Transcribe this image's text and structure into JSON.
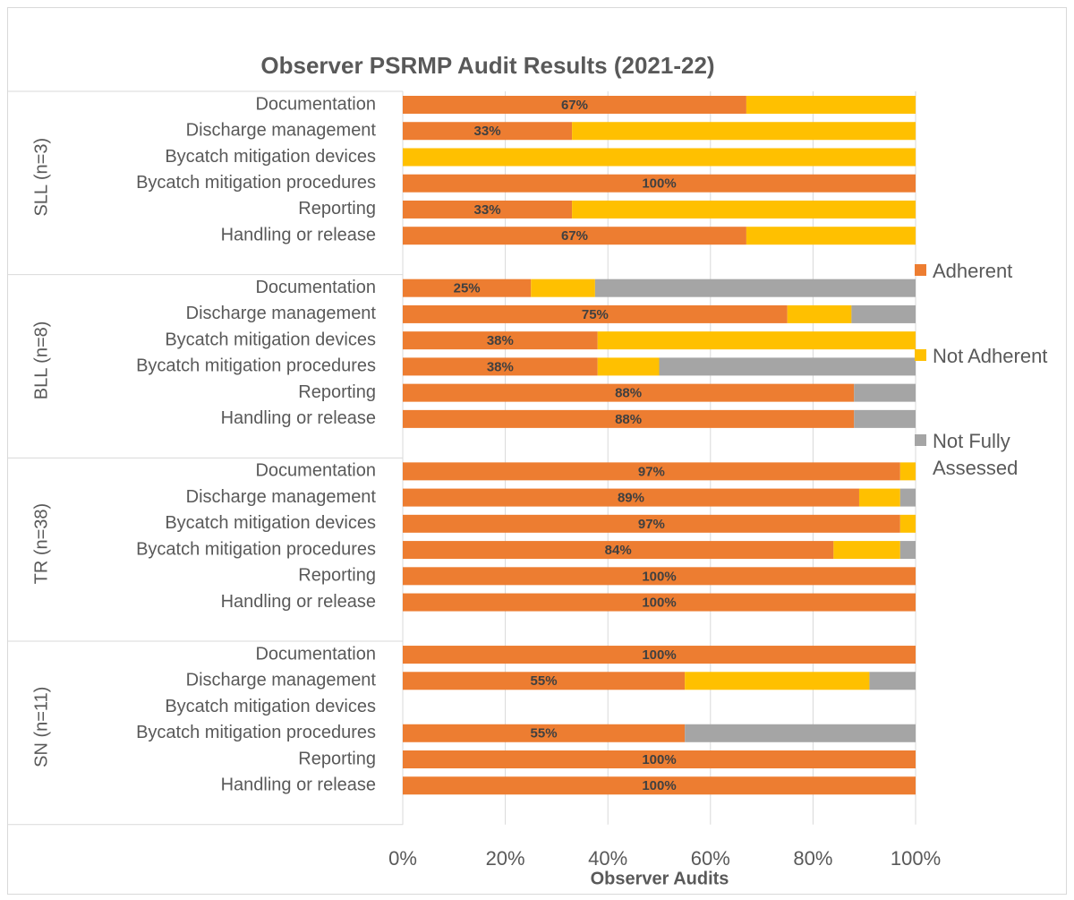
{
  "chart_data": {
    "type": "stacked-bar",
    "orientation": "horizontal",
    "title": "Observer PSRMP Audit Results (2021-22)",
    "x_label": "Observer Audits",
    "groups": [
      {
        "label": "SLL (n=3)",
        "categories": [
          "Documentation",
          "Discharge management",
          "Bycatch mitigation devices",
          "Bycatch mitigation procedures",
          "Reporting",
          "Handling or release"
        ]
      },
      {
        "label": "BLL (n=8)",
        "categories": [
          "Documentation",
          "Discharge management",
          "Bycatch mitigation devices",
          "Bycatch mitigation procedures",
          "Reporting",
          "Handling or release"
        ]
      },
      {
        "label": "TR (n=38)",
        "categories": [
          "Documentation",
          "Discharge management",
          "Bycatch mitigation devices",
          "Bycatch mitigation procedures",
          "Reporting",
          "Handling or release"
        ]
      },
      {
        "label": "SN (n=11)",
        "categories": [
          "Documentation",
          "Discharge management",
          "Bycatch mitigation devices",
          "Bycatch mitigation procedures",
          "Reporting",
          "Handling or release"
        ]
      }
    ],
    "series": [
      {
        "name": "Adherent",
        "color": "#ed7d31",
        "values": [
          67,
          33,
          0,
          100,
          33,
          67,
          25,
          75,
          38,
          38,
          88,
          88,
          97,
          89,
          97,
          84,
          100,
          100,
          100,
          55,
          null,
          55,
          100,
          100
        ],
        "value_labels": [
          "67%",
          "33%",
          null,
          "100%",
          "33%",
          "67%",
          "25%",
          "75%",
          "38%",
          "38%",
          "88%",
          "88%",
          "97%",
          "89%",
          "97%",
          "84%",
          "100%",
          "100%",
          "100%",
          "55%",
          null,
          "55%",
          "100%",
          "100%"
        ]
      },
      {
        "name": "Not Adherent",
        "color": "#ffc000",
        "values": [
          33,
          67,
          100,
          0,
          67,
          33,
          12.5,
          12.5,
          62,
          12,
          0,
          0,
          3,
          8,
          3,
          13,
          0,
          0,
          0,
          36,
          null,
          0,
          0,
          0
        ]
      },
      {
        "name": "Not Fully Assessed",
        "color": "#a5a5a5",
        "values": [
          0,
          0,
          0,
          0,
          0,
          0,
          62.5,
          12.5,
          0,
          50,
          12,
          12,
          0,
          3,
          0,
          3,
          0,
          0,
          0,
          9,
          null,
          45,
          0,
          0
        ]
      }
    ],
    "xlim": [
      0,
      100
    ],
    "xticks": [
      {
        "value": 0,
        "label": "0%"
      },
      {
        "value": 20,
        "label": "20%"
      },
      {
        "value": 40,
        "label": "40%"
      },
      {
        "value": 60,
        "label": "60%"
      },
      {
        "value": 80,
        "label": "80%"
      },
      {
        "value": 100,
        "label": "100%"
      }
    ],
    "grid": true,
    "legend": "right"
  }
}
